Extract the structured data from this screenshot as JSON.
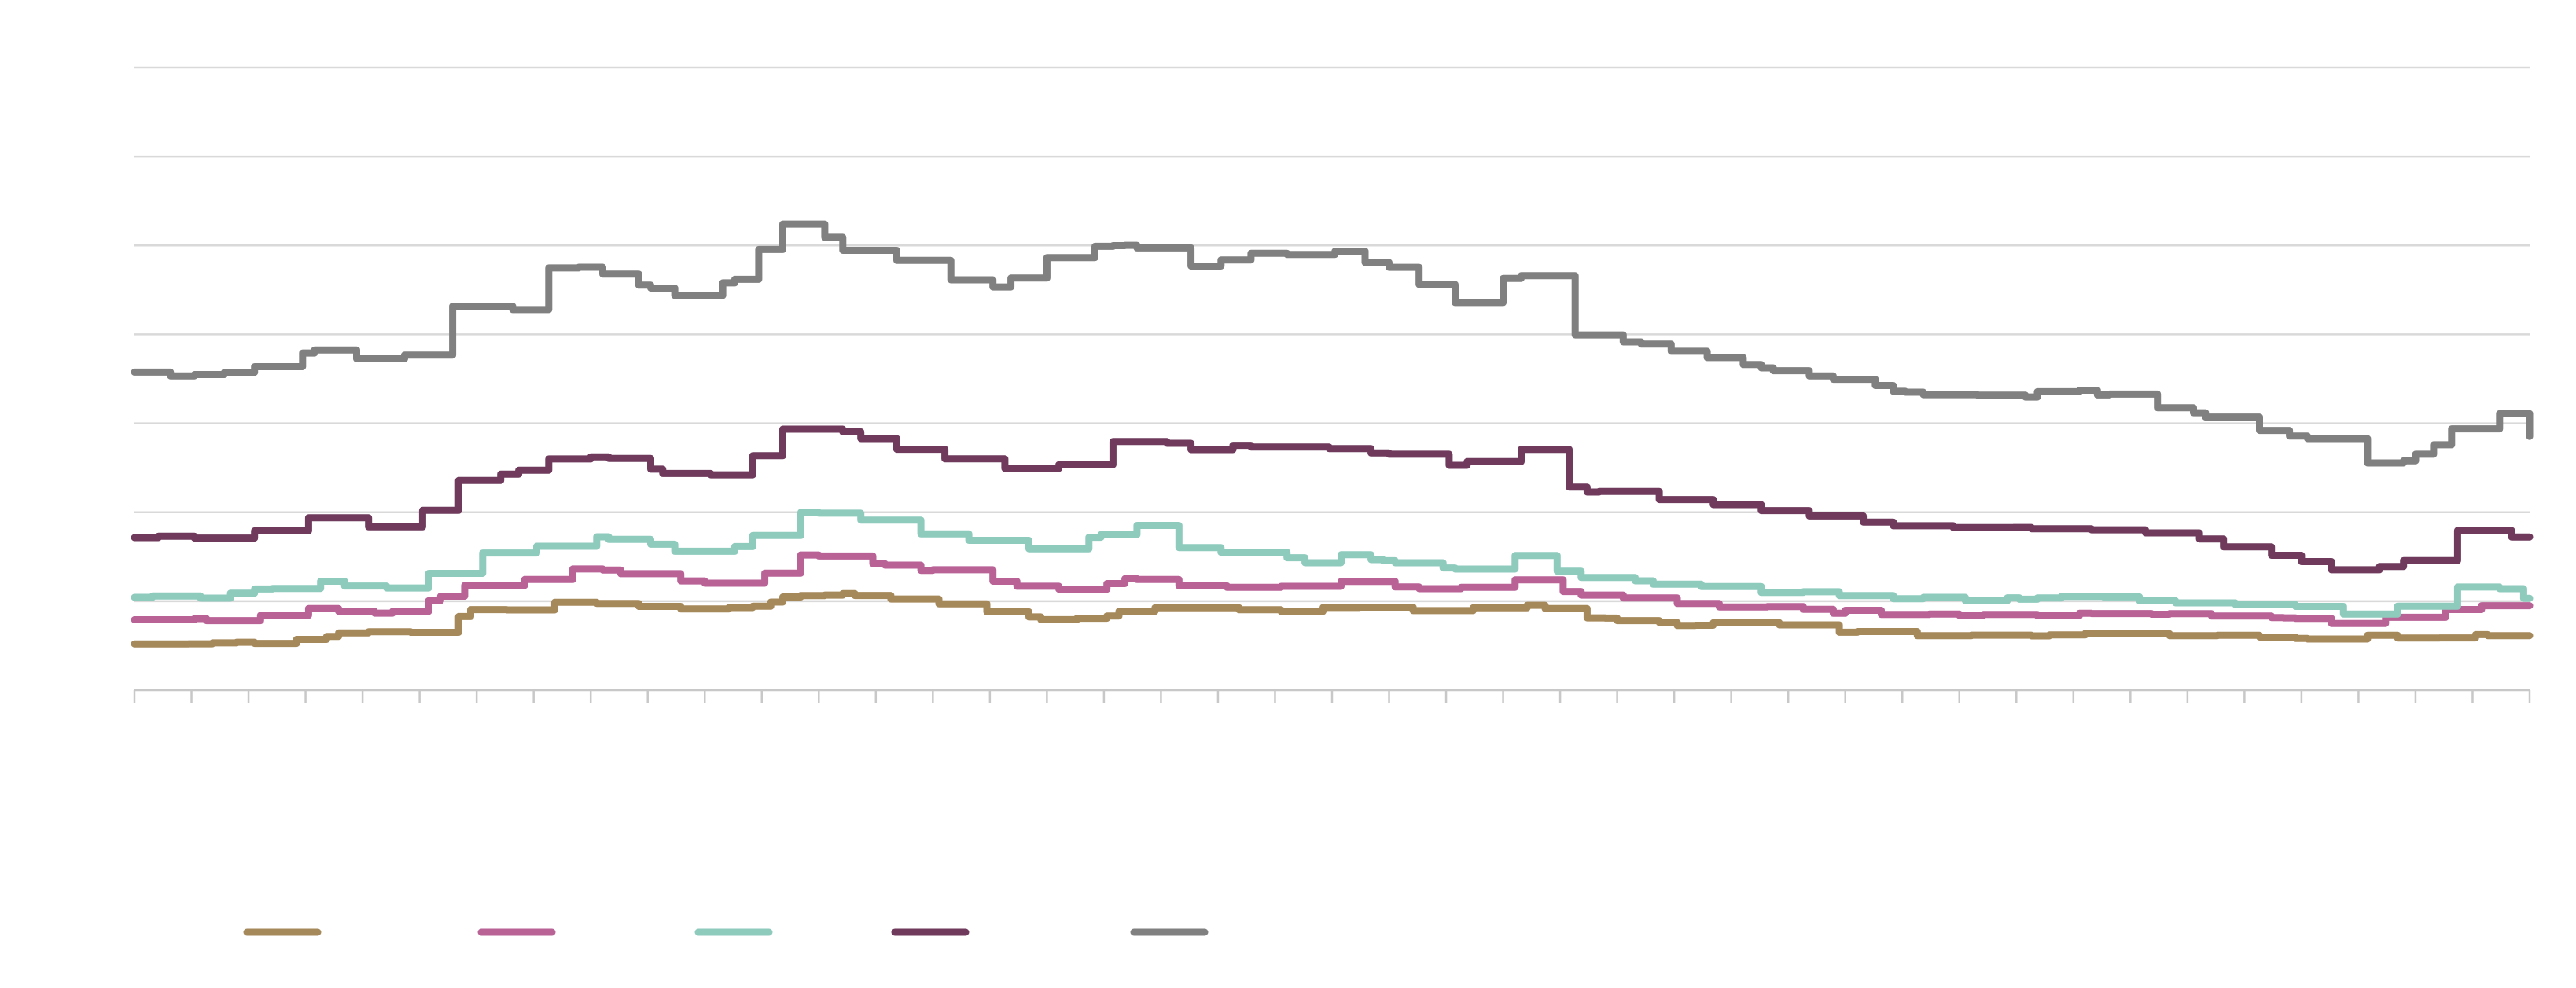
{
  "chart_data": {
    "type": "line",
    "title": "",
    "xlabel": "",
    "ylabel": "",
    "x_count": 400,
    "ylim": [
      0,
      70
    ],
    "y_gridlines": [
      0,
      10,
      20,
      30,
      40,
      50,
      60,
      70
    ],
    "grid": true,
    "legend_position": "bottom-left",
    "colors": [
      "#a6895b",
      "#b86296",
      "#8fcbbd",
      "#6f3a5c",
      "#808080"
    ],
    "series": [
      {
        "anchors": [
          [
            0,
            5.3
          ],
          [
            12,
            5.2
          ],
          [
            25,
            5.5
          ],
          [
            30,
            6
          ],
          [
            40,
            6.7
          ],
          [
            45,
            6.3
          ],
          [
            52,
            7.8
          ],
          [
            58,
            9.5
          ],
          [
            65,
            9
          ],
          [
            70,
            10
          ],
          [
            80,
            9.8
          ],
          [
            90,
            9
          ],
          [
            100,
            9.2
          ],
          [
            105,
            9.8
          ],
          [
            110,
            10.8
          ],
          [
            120,
            10.7
          ],
          [
            130,
            10
          ],
          [
            140,
            9
          ],
          [
            150,
            8
          ],
          [
            160,
            8.3
          ],
          [
            170,
            9.2
          ],
          [
            175,
            9.4
          ],
          [
            185,
            9.1
          ],
          [
            195,
            8.8
          ],
          [
            200,
            9.3
          ],
          [
            210,
            9
          ],
          [
            215,
            9.2
          ],
          [
            225,
            9.1
          ],
          [
            230,
            9.8
          ],
          [
            240,
            8.4
          ],
          [
            260,
            7.2
          ],
          [
            270,
            7.8
          ],
          [
            280,
            6.6
          ],
          [
            300,
            6.2
          ],
          [
            315,
            6.1
          ],
          [
            320,
            6.4
          ],
          [
            340,
            6.1
          ],
          [
            360,
            6
          ],
          [
            365,
            5.8
          ],
          [
            375,
            6.1
          ],
          [
            380,
            5.9
          ],
          [
            385,
            5.8
          ],
          [
            390,
            6.3
          ],
          [
            395,
            5.5
          ],
          [
            400,
            5.6
          ]
        ]
      },
      {
        "anchors": [
          [
            0,
            8
          ],
          [
            12,
            8
          ],
          [
            20,
            8.4
          ],
          [
            25,
            9
          ],
          [
            30,
            9.2
          ],
          [
            40,
            8.5
          ],
          [
            45,
            8.8
          ],
          [
            52,
            10.8
          ],
          [
            57,
            12.7
          ],
          [
            62,
            11.8
          ],
          [
            70,
            13.5
          ],
          [
            80,
            13.4
          ],
          [
            90,
            12.2
          ],
          [
            100,
            12.2
          ],
          [
            105,
            13
          ],
          [
            110,
            15.2
          ],
          [
            120,
            14.4
          ],
          [
            130,
            13.6
          ],
          [
            140,
            12.8
          ],
          [
            150,
            11
          ],
          [
            160,
            11.5
          ],
          [
            165,
            12.6
          ],
          [
            170,
            12.6
          ],
          [
            175,
            11.5
          ],
          [
            185,
            11.8
          ],
          [
            195,
            11.4
          ],
          [
            200,
            12.5
          ],
          [
            210,
            11.6
          ],
          [
            220,
            11.2
          ],
          [
            225,
            12.2
          ],
          [
            230,
            12.3
          ],
          [
            240,
            10.6
          ],
          [
            260,
            9.7
          ],
          [
            280,
            8.9
          ],
          [
            300,
            8.4
          ],
          [
            315,
            8.3
          ],
          [
            320,
            8.9
          ],
          [
            340,
            8.5
          ],
          [
            360,
            8.2
          ],
          [
            365,
            7.5
          ],
          [
            375,
            8
          ],
          [
            380,
            8.3
          ],
          [
            385,
            8.9
          ],
          [
            390,
            9.8
          ],
          [
            395,
            8.6
          ],
          [
            400,
            8.3
          ]
        ]
      },
      {
        "anchors": [
          [
            0,
            10.5
          ],
          [
            12,
            10.4
          ],
          [
            20,
            11.2
          ],
          [
            25,
            11.8
          ],
          [
            30,
            12.3
          ],
          [
            40,
            11.5
          ],
          [
            45,
            11.7
          ],
          [
            52,
            14
          ],
          [
            57,
            16
          ],
          [
            60,
            13.8
          ],
          [
            65,
            15.5
          ],
          [
            70,
            17.5
          ],
          [
            80,
            17
          ],
          [
            90,
            15.8
          ],
          [
            100,
            16.2
          ],
          [
            105,
            18.5
          ],
          [
            110,
            20.2
          ],
          [
            120,
            19.2
          ],
          [
            130,
            17.8
          ],
          [
            140,
            16.8
          ],
          [
            150,
            16
          ],
          [
            160,
            17.3
          ],
          [
            165,
            18.7
          ],
          [
            170,
            17.8
          ],
          [
            175,
            15.5
          ],
          [
            185,
            15.3
          ],
          [
            195,
            14.5
          ],
          [
            200,
            15.3
          ],
          [
            210,
            14.3
          ],
          [
            220,
            13.6
          ],
          [
            225,
            14.8
          ],
          [
            230,
            15
          ],
          [
            240,
            12.6
          ],
          [
            260,
            11.6
          ],
          [
            280,
            10.8
          ],
          [
            300,
            10.2
          ],
          [
            315,
            10.2
          ],
          [
            320,
            10.5
          ],
          [
            340,
            10
          ],
          [
            360,
            9.5
          ],
          [
            365,
            8.3
          ],
          [
            375,
            9
          ],
          [
            380,
            9.6
          ],
          [
            385,
            10.8
          ],
          [
            390,
            12.3
          ],
          [
            395,
            11.3
          ],
          [
            400,
            9.4
          ]
        ]
      },
      {
        "anchors": [
          [
            0,
            17.2
          ],
          [
            12,
            17
          ],
          [
            20,
            18
          ],
          [
            25,
            18.9
          ],
          [
            30,
            19.6
          ],
          [
            40,
            18
          ],
          [
            45,
            18.4
          ],
          [
            52,
            22.9
          ],
          [
            57,
            25
          ],
          [
            62,
            24
          ],
          [
            70,
            26.2
          ],
          [
            80,
            26
          ],
          [
            90,
            23.9
          ],
          [
            100,
            24.5
          ],
          [
            105,
            27.5
          ],
          [
            110,
            30.8
          ],
          [
            120,
            28.5
          ],
          [
            130,
            26.4
          ],
          [
            140,
            25.5
          ],
          [
            150,
            24.5
          ],
          [
            160,
            27
          ],
          [
            165,
            28.5
          ],
          [
            170,
            28
          ],
          [
            175,
            27.2
          ],
          [
            185,
            27.5
          ],
          [
            195,
            26.8
          ],
          [
            200,
            27.4
          ],
          [
            210,
            26.5
          ],
          [
            220,
            25
          ],
          [
            225,
            26.5
          ],
          [
            230,
            27.5
          ],
          [
            240,
            22.5
          ],
          [
            260,
            21
          ],
          [
            280,
            19.4
          ],
          [
            300,
            18.1
          ],
          [
            315,
            18.2
          ],
          [
            320,
            18.6
          ],
          [
            340,
            17.3
          ],
          [
            360,
            14.8
          ],
          [
            365,
            13.5
          ],
          [
            375,
            13.8
          ],
          [
            380,
            14.9
          ],
          [
            385,
            16.9
          ],
          [
            390,
            20
          ],
          [
            395,
            17.6
          ],
          [
            400,
            16
          ]
        ]
      },
      {
        "anchors": [
          [
            0,
            35.8
          ],
          [
            12,
            35.2
          ],
          [
            20,
            36.3
          ],
          [
            25,
            37.3
          ],
          [
            30,
            38.1
          ],
          [
            40,
            37.1
          ],
          [
            45,
            37.8
          ],
          [
            52,
            42.8
          ],
          [
            57,
            45.5
          ],
          [
            60,
            41
          ],
          [
            65,
            44
          ],
          [
            70,
            48.3
          ],
          [
            80,
            46.5
          ],
          [
            90,
            44.2
          ],
          [
            100,
            46.3
          ],
          [
            105,
            50.5
          ],
          [
            110,
            53.6
          ],
          [
            120,
            48.5
          ],
          [
            130,
            48.4
          ],
          [
            140,
            44.5
          ],
          [
            150,
            47.8
          ],
          [
            155,
            49.6
          ],
          [
            165,
            50
          ],
          [
            175,
            47.7
          ],
          [
            185,
            49
          ],
          [
            195,
            48.8
          ],
          [
            200,
            49.3
          ],
          [
            210,
            47.2
          ],
          [
            220,
            43.5
          ],
          [
            225,
            44.6
          ],
          [
            230,
            47.5
          ],
          [
            240,
            40
          ],
          [
            260,
            37.8
          ],
          [
            280,
            35.2
          ],
          [
            300,
            33
          ],
          [
            315,
            33
          ],
          [
            320,
            34.4
          ],
          [
            340,
            31.5
          ],
          [
            360,
            28.5
          ],
          [
            365,
            27.5
          ],
          [
            375,
            24.8
          ],
          [
            380,
            26.5
          ],
          [
            385,
            28.5
          ],
          [
            390,
            32.5
          ],
          [
            395,
            30.5
          ],
          [
            400,
            28
          ]
        ]
      }
    ]
  }
}
